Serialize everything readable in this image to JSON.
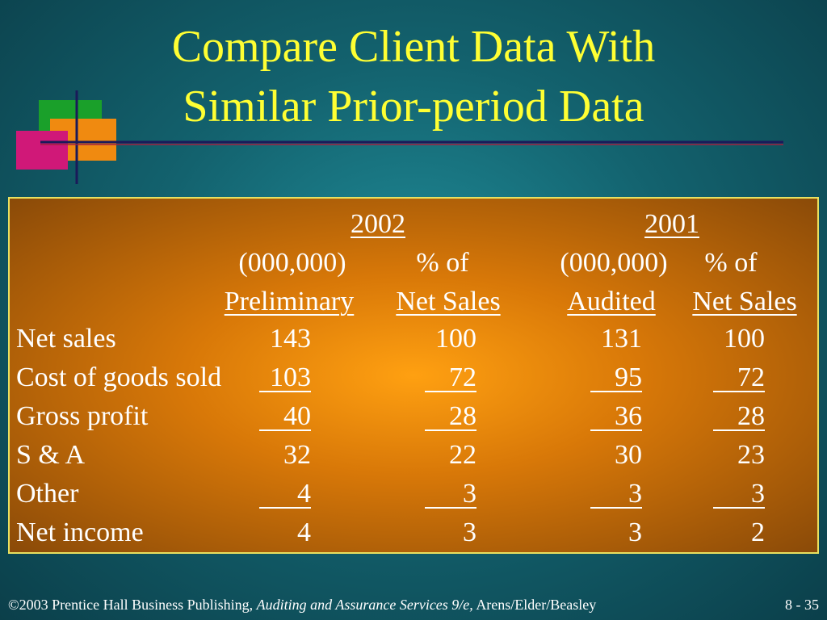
{
  "title": [
    "Compare Client Data With",
    "Similar Prior-period Data"
  ],
  "table": {
    "years": [
      "2002",
      "2001"
    ],
    "header_line1": [
      "(000,000)",
      "% of",
      "(000,000)",
      "% of"
    ],
    "header_line2": [
      "Preliminary",
      "Net Sales",
      "Audited",
      "Net Sales"
    ],
    "rows": [
      [
        "Net sales",
        143,
        100,
        131,
        100
      ],
      [
        "Cost of goods sold",
        103,
        72,
        95,
        72
      ],
      [
        "Gross profit",
        40,
        28,
        36,
        28
      ],
      [
        "S & A",
        32,
        22,
        30,
        23
      ],
      [
        "Other",
        4,
        3,
        3,
        3
      ],
      [
        "Net income",
        4,
        3,
        3,
        2
      ]
    ]
  },
  "footer": {
    "publisher": "©2003 Prentice Hall Business Publishing,",
    "book": "Auditing and Assurance Services 9/e,",
    "authors": "Arens/Elder/Beasley",
    "page": "8 - 35"
  }
}
